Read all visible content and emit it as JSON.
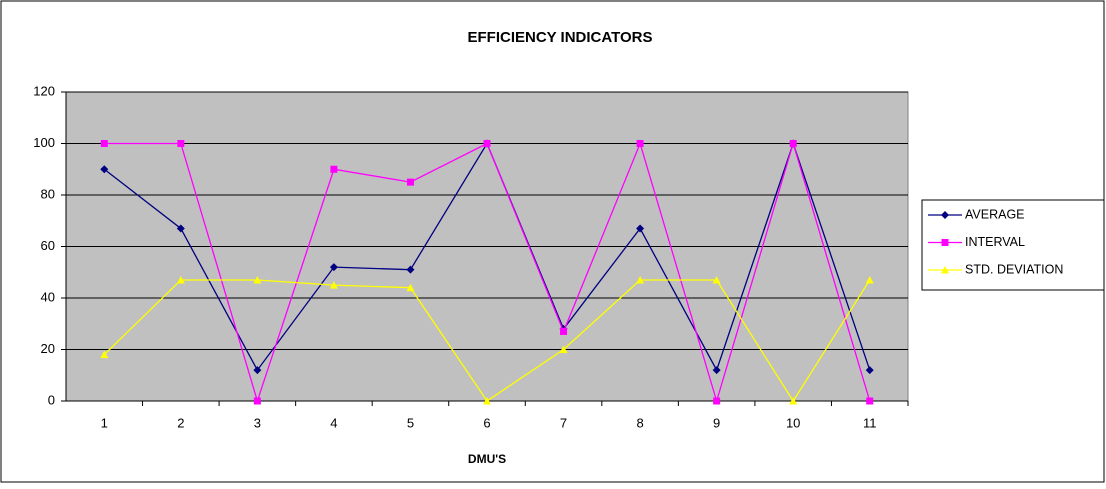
{
  "chart_data": {
    "type": "line",
    "title": "EFFICIENCY INDICATORS",
    "x_label": "DMU'S",
    "categories": [
      "1",
      "2",
      "3",
      "4",
      "5",
      "6",
      "7",
      "8",
      "9",
      "10",
      "11"
    ],
    "series": [
      {
        "name": "AVERAGE",
        "color": "#000080",
        "marker": "diamond",
        "values": [
          90,
          67,
          12,
          52,
          51,
          100,
          28,
          67,
          12,
          100,
          12
        ]
      },
      {
        "name": "INTERVAL",
        "color": "#ff00ff",
        "marker": "square",
        "values": [
          100,
          100,
          0,
          90,
          85,
          100,
          27,
          100,
          0,
          100,
          0
        ]
      },
      {
        "name": "STD. DEVIATION",
        "color": "#ffff00",
        "marker": "triangle",
        "values": [
          18,
          47,
          47,
          45,
          44,
          0,
          20,
          47,
          47,
          0,
          47
        ]
      }
    ],
    "ylim": [
      0,
      120
    ],
    "yticks": [
      0,
      20,
      40,
      60,
      80,
      100,
      120
    ],
    "grid": true,
    "legend": "right"
  }
}
